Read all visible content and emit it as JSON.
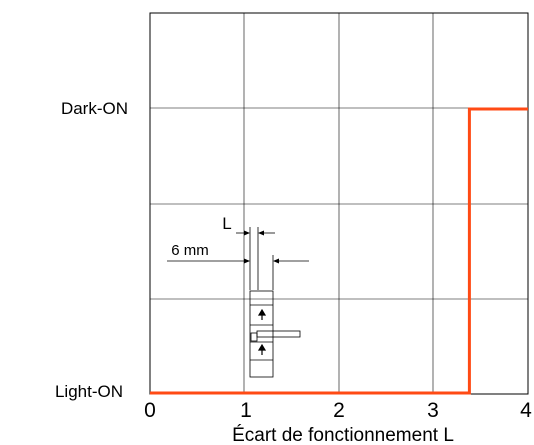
{
  "chart_data": {
    "type": "line",
    "title": "",
    "xlabel": "Écart de fonctionnement L",
    "ylabel": "",
    "xlim": [
      0,
      4
    ],
    "x_ticks": [
      "0",
      "1",
      "2",
      "3",
      "4"
    ],
    "y_states": [
      "Light-ON",
      "Dark-ON"
    ],
    "grid": true,
    "series": [
      {
        "color": "#ff4a14",
        "points": [
          {
            "x": 0,
            "y": "Light-ON"
          },
          {
            "x": 3.38,
            "y": "Light-ON"
          },
          {
            "x": 3.38,
            "y": "Dark-ON"
          },
          {
            "x": 4,
            "y": "Dark-ON"
          }
        ]
      }
    ],
    "inset": {
      "label_l": "L",
      "label_width": "6 mm"
    }
  }
}
